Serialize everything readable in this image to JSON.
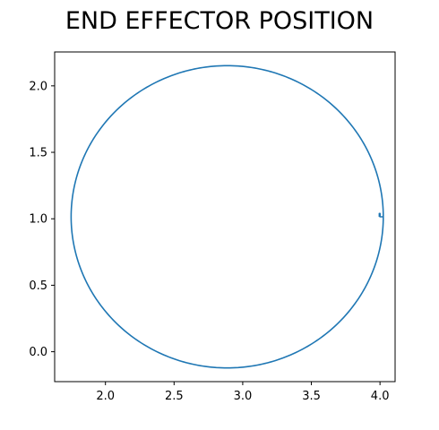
{
  "chart_data": {
    "type": "line",
    "title": "END EFFECTOR POSITION",
    "xlabel": "",
    "ylabel": "",
    "xlim": [
      1.63,
      4.11
    ],
    "ylim": [
      -0.225,
      2.255
    ],
    "x_ticks": [
      2.0,
      2.5,
      3.0,
      3.5,
      4.0
    ],
    "x_tick_labels": [
      "2.0",
      "2.5",
      "3.0",
      "3.5",
      "4.0"
    ],
    "y_ticks": [
      0.0,
      0.5,
      1.0,
      1.5,
      2.0
    ],
    "y_tick_labels": [
      "0.0",
      "0.5",
      "1.0",
      "1.5",
      "2.0"
    ],
    "grid": false,
    "legend": "none",
    "series": [
      {
        "color": "#1f77b4",
        "shape": "circle",
        "center": [
          2.887,
          1.015
        ],
        "radius": 1.137,
        "start": [
          4.0,
          1.015
        ],
        "tail": [
          [
            3.995,
            1.015
          ],
          [
            3.995,
            1.04
          ],
          [
            4.0,
            1.04
          ],
          [
            4.0,
            1.015
          ]
        ]
      }
    ]
  }
}
